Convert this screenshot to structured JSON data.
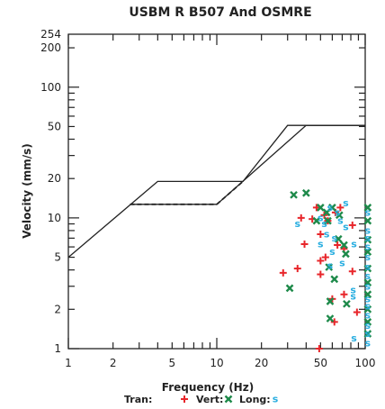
{
  "chart_data": {
    "type": "scatter",
    "title": "USBM R B507 And OSMRE",
    "xlabel": "Frequency (Hz)",
    "ylabel": "Velocity (mm/s)",
    "x_scale": "log",
    "y_scale": "log",
    "xlim": [
      1,
      100
    ],
    "ylim": [
      1,
      254
    ],
    "x_tick_labels": [
      "1",
      "2",
      "5",
      "10",
      "20",
      "50",
      "100"
    ],
    "x_tick_values": [
      1,
      2,
      5,
      10,
      20,
      50,
      100
    ],
    "y_tick_labels": [
      "1",
      "2",
      "5",
      "10",
      "20",
      "50",
      "100",
      "200",
      "254"
    ],
    "y_tick_values": [
      1,
      2,
      5,
      10,
      20,
      50,
      100,
      200,
      254
    ],
    "grid": false,
    "legend_placement": "bottom",
    "limit_curves": [
      {
        "style": "solid",
        "points": [
          [
            1,
            5
          ],
          [
            4,
            19
          ],
          [
            15,
            19
          ],
          [
            30,
            51
          ],
          [
            100,
            51
          ]
        ]
      },
      {
        "style": "solid",
        "points": [
          [
            2.6,
            12.7
          ],
          [
            10,
            12.7
          ],
          [
            40,
            51
          ],
          [
            100,
            51
          ]
        ]
      },
      {
        "style": "dashed",
        "points": [
          [
            2.6,
            12.7
          ],
          [
            10,
            12.7
          ]
        ]
      },
      {
        "style": "dashed",
        "points": [
          [
            10,
            12.7
          ],
          [
            15,
            19
          ]
        ]
      }
    ],
    "series": [
      {
        "name": "Tran:",
        "marker": "+",
        "color": "#e8262b",
        "points": [
          [
            28,
            3.8
          ],
          [
            35,
            4.1
          ],
          [
            37,
            10
          ],
          [
            39,
            6.3
          ],
          [
            44,
            9.8
          ],
          [
            47,
            12
          ],
          [
            49,
            1.0
          ],
          [
            50,
            7.5
          ],
          [
            50,
            4.7
          ],
          [
            50,
            3.7
          ],
          [
            53,
            10.5
          ],
          [
            54,
            5
          ],
          [
            56,
            9.5
          ],
          [
            60,
            2.4
          ],
          [
            62,
            1.6
          ],
          [
            63,
            11
          ],
          [
            65,
            6.2
          ],
          [
            68,
            12
          ],
          [
            72,
            5.8
          ],
          [
            72,
            2.6
          ],
          [
            82,
            8.8
          ],
          [
            82,
            3.9
          ],
          [
            88,
            1.9
          ]
        ]
      },
      {
        "name": "Vert:",
        "marker": "x",
        "color": "#1e8a4a",
        "points": [
          [
            31,
            2.9
          ],
          [
            33,
            15
          ],
          [
            40,
            15.5
          ],
          [
            47,
            9.5
          ],
          [
            50,
            12
          ],
          [
            55,
            11
          ],
          [
            56,
            9.5
          ],
          [
            57,
            4.2
          ],
          [
            58,
            1.7
          ],
          [
            58,
            2.3
          ],
          [
            60,
            12
          ],
          [
            62,
            3.4
          ],
          [
            66,
            6.9
          ],
          [
            67,
            10.5
          ],
          [
            72,
            6.2
          ],
          [
            74,
            5.3
          ],
          [
            75,
            2.2
          ],
          [
            104,
            12
          ],
          [
            104,
            9.5
          ],
          [
            104,
            6.8
          ],
          [
            104,
            5.5
          ],
          [
            104,
            4.1
          ],
          [
            104,
            3.2
          ],
          [
            104,
            2.6
          ],
          [
            104,
            2.0
          ],
          [
            104,
            1.6
          ],
          [
            104,
            1.3
          ]
        ]
      },
      {
        "name": "Long:",
        "marker": "s",
        "color": "#29aee0",
        "points": [
          [
            35,
            9
          ],
          [
            50,
            10
          ],
          [
            50,
            6.3
          ],
          [
            53,
            9
          ],
          [
            55,
            7.5
          ],
          [
            58,
            4.3
          ],
          [
            58,
            12
          ],
          [
            60,
            5.5
          ],
          [
            62,
            7
          ],
          [
            65,
            11
          ],
          [
            68,
            9.5
          ],
          [
            70,
            4.5
          ],
          [
            74,
            13
          ],
          [
            74,
            8.5
          ],
          [
            83,
            2.8
          ],
          [
            83,
            2.5
          ],
          [
            84,
            1.2
          ],
          [
            84,
            6.3
          ],
          [
            104,
            11
          ],
          [
            104,
            8
          ],
          [
            104,
            7
          ],
          [
            104,
            6
          ],
          [
            104,
            5
          ],
          [
            104,
            4.2
          ],
          [
            104,
            3.6
          ],
          [
            104,
            3
          ],
          [
            104,
            2.4
          ],
          [
            104,
            2.1
          ],
          [
            104,
            1.8
          ],
          [
            104,
            1.5
          ],
          [
            104,
            1.3
          ],
          [
            104,
            1.1
          ]
        ]
      }
    ]
  }
}
